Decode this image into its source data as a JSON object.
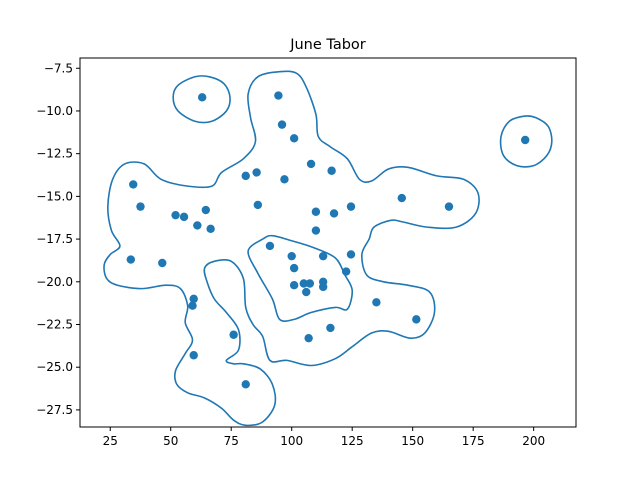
{
  "chart_data": {
    "type": "scatter",
    "title": "June Tabor",
    "xlabel": "",
    "ylabel": "",
    "xlim": [
      12.5,
      217.5
    ],
    "ylim": [
      -28.5,
      -6.9
    ],
    "xticks": [
      25,
      50,
      75,
      100,
      125,
      150,
      175,
      200
    ],
    "xtick_labels": [
      "25",
      "50",
      "75",
      "100",
      "125",
      "150",
      "175",
      "200"
    ],
    "yticks": [
      -7.5,
      -10.0,
      -12.5,
      -15.0,
      -17.5,
      -20.0,
      -22.5,
      -25.0,
      -27.5
    ],
    "ytick_labels": [
      "−7.5",
      "−10.0",
      "−12.5",
      "−15.0",
      "−17.5",
      "−20.0",
      "−22.5",
      "−25.0",
      "−27.5"
    ],
    "grid": false,
    "colors": {
      "points": "#1f77b4",
      "contour": "#1f77b4"
    },
    "points": [
      [
        63,
        -9.2
      ],
      [
        94.5,
        -9.1
      ],
      [
        96,
        -10.8
      ],
      [
        101,
        -11.6
      ],
      [
        196.5,
        -11.7
      ],
      [
        34.5,
        -14.3
      ],
      [
        81,
        -13.8
      ],
      [
        85.5,
        -13.6
      ],
      [
        97,
        -14.0
      ],
      [
        108,
        -13.1
      ],
      [
        116.5,
        -13.5
      ],
      [
        145.5,
        -15.1
      ],
      [
        37.5,
        -15.6
      ],
      [
        86,
        -15.5
      ],
      [
        165,
        -15.6
      ],
      [
        124.5,
        -15.6
      ],
      [
        52,
        -16.1
      ],
      [
        55.5,
        -16.2
      ],
      [
        64.5,
        -15.8
      ],
      [
        110,
        -15.9
      ],
      [
        117.5,
        -16.0
      ],
      [
        61,
        -16.7
      ],
      [
        66.5,
        -16.9
      ],
      [
        110,
        -17.0
      ],
      [
        91,
        -17.9
      ],
      [
        33.5,
        -18.7
      ],
      [
        46.5,
        -18.9
      ],
      [
        100,
        -18.5
      ],
      [
        113,
        -18.5
      ],
      [
        124.5,
        -18.4
      ],
      [
        101,
        -19.2
      ],
      [
        122.5,
        -19.4
      ],
      [
        101,
        -20.2
      ],
      [
        105,
        -20.1
      ],
      [
        107.5,
        -20.1
      ],
      [
        113,
        -20.0
      ],
      [
        113,
        -20.3
      ],
      [
        106,
        -20.6
      ],
      [
        59.5,
        -21.0
      ],
      [
        59,
        -21.4
      ],
      [
        135,
        -21.2
      ],
      [
        151.5,
        -22.2
      ],
      [
        116,
        -22.7
      ],
      [
        76,
        -23.1
      ],
      [
        107,
        -23.3
      ],
      [
        59.5,
        -24.3
      ],
      [
        81,
        -26.0
      ]
    ],
    "contours": [
      [
        [
          60,
          -8.0
        ],
        [
          53,
          -8.5
        ],
        [
          51,
          -9.2
        ],
        [
          53,
          -10.0
        ],
        [
          60,
          -10.6
        ],
        [
          67,
          -10.6
        ],
        [
          73,
          -10.0
        ],
        [
          74.5,
          -9.2
        ],
        [
          72,
          -8.4
        ],
        [
          66,
          -8.0
        ],
        [
          60,
          -8.0
        ]
      ],
      [
        [
          196.5,
          -10.3
        ],
        [
          190,
          -10.6
        ],
        [
          186.5,
          -11.5
        ],
        [
          187.5,
          -12.6
        ],
        [
          193,
          -13.2
        ],
        [
          200,
          -13.2
        ],
        [
          205.5,
          -12.6
        ],
        [
          207.5,
          -11.8
        ],
        [
          206,
          -10.9
        ],
        [
          201,
          -10.4
        ],
        [
          196.5,
          -10.3
        ]
      ],
      [
        [
          95,
          -7.7
        ],
        [
          86,
          -8.0
        ],
        [
          82,
          -9.0
        ],
        [
          83,
          -10.4
        ],
        [
          85,
          -11.8
        ],
        [
          80,
          -12.8
        ],
        [
          71,
          -13.6
        ],
        [
          67,
          -14.4
        ],
        [
          57,
          -14.4
        ],
        [
          46,
          -14.0
        ],
        [
          39,
          -13.1
        ],
        [
          31,
          -13.1
        ],
        [
          26,
          -14.0
        ],
        [
          24,
          -15.6
        ],
        [
          25.5,
          -17.0
        ],
        [
          29,
          -17.9
        ],
        [
          25,
          -18.4
        ],
        [
          22.5,
          -19.0
        ],
        [
          23.5,
          -19.8
        ],
        [
          28,
          -20.2
        ],
        [
          38,
          -20.4
        ],
        [
          48,
          -20.2
        ],
        [
          54,
          -20.4
        ],
        [
          57,
          -21.4
        ],
        [
          56,
          -22.4
        ],
        [
          59,
          -23.4
        ],
        [
          56,
          -24.2
        ],
        [
          52,
          -25.2
        ],
        [
          52.5,
          -26.0
        ],
        [
          57,
          -26.5
        ],
        [
          64,
          -26.8
        ],
        [
          71,
          -27.4
        ],
        [
          76,
          -28.1
        ],
        [
          81,
          -28.4
        ],
        [
          88,
          -28.2
        ],
        [
          93,
          -27.2
        ],
        [
          92,
          -26.0
        ],
        [
          87,
          -25.1
        ],
        [
          80,
          -24.8
        ],
        [
          76,
          -24.8
        ],
        [
          73,
          -24.6
        ],
        [
          78,
          -24.0
        ],
        [
          78,
          -22.8
        ],
        [
          73,
          -21.8
        ],
        [
          68,
          -21.0
        ],
        [
          65,
          -20.0
        ],
        [
          64,
          -19.2
        ],
        [
          68,
          -18.8
        ],
        [
          75,
          -18.8
        ],
        [
          80,
          -19.8
        ],
        [
          81,
          -21.5
        ],
        [
          84,
          -22.5
        ],
        [
          88,
          -23.2
        ],
        [
          91,
          -24.6
        ],
        [
          98,
          -24.6
        ],
        [
          108,
          -24.9
        ],
        [
          118,
          -24.5
        ],
        [
          125,
          -23.8
        ],
        [
          133,
          -23.0
        ],
        [
          140,
          -22.9
        ],
        [
          149,
          -23.3
        ],
        [
          155,
          -23.0
        ],
        [
          159,
          -21.8
        ],
        [
          157,
          -20.6
        ],
        [
          148,
          -20.2
        ],
        [
          138,
          -20.0
        ],
        [
          131,
          -19.6
        ],
        [
          129,
          -18.4
        ],
        [
          132,
          -17.5
        ],
        [
          134,
          -16.8
        ],
        [
          141,
          -16.4
        ],
        [
          146,
          -16.5
        ],
        [
          156,
          -16.8
        ],
        [
          168,
          -16.8
        ],
        [
          176,
          -16.0
        ],
        [
          177,
          -14.8
        ],
        [
          171,
          -14.0
        ],
        [
          160,
          -13.8
        ],
        [
          148,
          -13.3
        ],
        [
          140,
          -13.4
        ],
        [
          133,
          -14.1
        ],
        [
          128,
          -14.0
        ],
        [
          123,
          -12.8
        ],
        [
          116,
          -12.1
        ],
        [
          111,
          -11.5
        ],
        [
          110,
          -10.2
        ],
        [
          106,
          -8.6
        ],
        [
          102,
          -7.8
        ],
        [
          95,
          -7.7
        ]
      ],
      [
        [
          88,
          -17.5
        ],
        [
          82,
          -18.2
        ],
        [
          86,
          -19.5
        ],
        [
          92,
          -21.0
        ],
        [
          95,
          -22.2
        ],
        [
          101,
          -22.2
        ],
        [
          108,
          -21.8
        ],
        [
          118,
          -21.5
        ],
        [
          123,
          -21.6
        ],
        [
          125,
          -20.5
        ],
        [
          122,
          -19.6
        ],
        [
          118,
          -18.6
        ],
        [
          109,
          -18.0
        ],
        [
          100,
          -17.6
        ],
        [
          92,
          -17.3
        ],
        [
          88,
          -17.5
        ]
      ]
    ]
  }
}
